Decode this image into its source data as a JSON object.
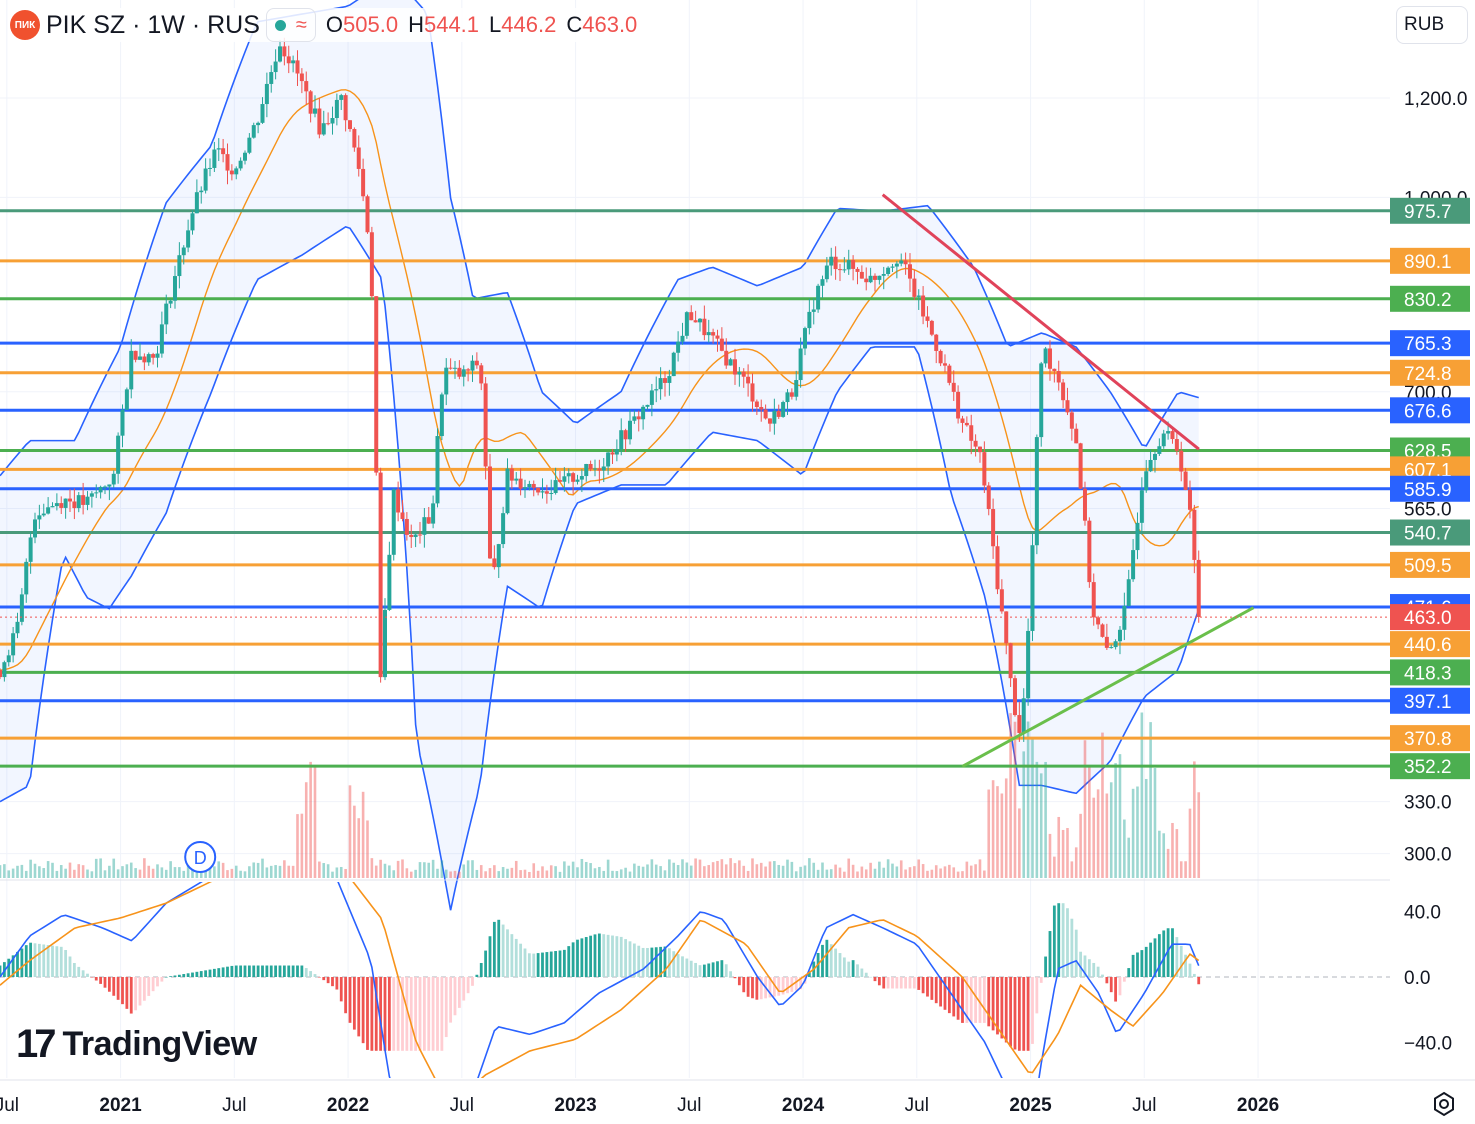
{
  "header": {
    "logo_text": "ПИК",
    "title": "PIK SZ · 1W · RUS",
    "indicator_icon": "wave-icon",
    "ohlc": [
      {
        "key": "O",
        "value": "505.0"
      },
      {
        "key": "H",
        "value": "544.1"
      },
      {
        "key": "L",
        "value": "446.2"
      },
      {
        "key": "C",
        "value": "463.0"
      }
    ]
  },
  "currency": "RUB",
  "branding": {
    "mark": "17",
    "word": "TradingView"
  },
  "colors": {
    "up": "#26a69a",
    "down": "#ef5350",
    "bollinger": "#2962ff",
    "ma": "#f7931a",
    "level_green": "#4caf50",
    "level_orange": "#f7a035",
    "level_blue": "#2962ff",
    "level_teal": "#4a9a7a",
    "trend_red": "#e0435a",
    "trend_green": "#6abf4b"
  },
  "chart_data": [
    {
      "type": "candlestick",
      "symbol": "PIK SZ",
      "interval": "1W",
      "ylog": true,
      "ylim": [
        280,
        1500
      ],
      "y_ticks": [
        "1,200.0",
        "1,000.0",
        "700.0",
        "565.0",
        "330.0",
        "300.0"
      ],
      "x_ticks": [
        "Jul",
        "2021",
        "Jul",
        "2022",
        "Jul",
        "2023",
        "Jul",
        "2024",
        "Jul",
        "2025",
        "Jul",
        "2026"
      ],
      "x_tick_times": [
        2020.5,
        2021.0,
        2021.5,
        2022.0,
        2022.5,
        2023.0,
        2023.5,
        2024.0,
        2024.5,
        2025.0,
        2025.5,
        2026.0
      ],
      "xlim": [
        2020.47,
        2026.58
      ],
      "last_price": {
        "value": 463.0,
        "label": "463.0"
      },
      "levels": [
        {
          "value": 975.7,
          "label": "975.7",
          "color": "teal"
        },
        {
          "value": 890.1,
          "label": "890.1",
          "color": "orange"
        },
        {
          "value": 830.2,
          "label": "830.2",
          "color": "green"
        },
        {
          "value": 765.3,
          "label": "765.3",
          "color": "blue"
        },
        {
          "value": 724.8,
          "label": "724.8",
          "color": "orange"
        },
        {
          "value": 676.6,
          "label": "676.6",
          "color": "blue"
        },
        {
          "value": 628.5,
          "label": "628.5",
          "color": "green"
        },
        {
          "value": 607.1,
          "label": "607.1",
          "color": "orange"
        },
        {
          "value": 585.9,
          "label": "585.9",
          "color": "blue"
        },
        {
          "value": 540.7,
          "label": "540.7",
          "color": "teal"
        },
        {
          "value": 509.5,
          "label": "509.5",
          "color": "orange"
        },
        {
          "value": 471.6,
          "label": "471.6",
          "color": "blue"
        },
        {
          "value": 440.6,
          "label": "440.6",
          "color": "orange"
        },
        {
          "value": 418.3,
          "label": "418.3",
          "color": "green"
        },
        {
          "value": 397.1,
          "label": "397.1",
          "color": "blue"
        },
        {
          "value": 370.8,
          "label": "370.8",
          "color": "orange"
        },
        {
          "value": 352.2,
          "label": "352.2",
          "color": "green"
        }
      ],
      "trendlines": [
        {
          "color": "red",
          "points": [
            [
              2024.35,
              1005
            ],
            [
              2025.74,
              630
            ]
          ]
        },
        {
          "color": "green",
          "points": [
            [
              2024.7,
              352
            ],
            [
              2025.98,
              471
            ]
          ]
        }
      ],
      "dividend_marker": {
        "time": 2021.35,
        "label": "D"
      },
      "price_keypoints": [
        [
          2020.47,
          420
        ],
        [
          2020.55,
          455
        ],
        [
          2020.62,
          560
        ],
        [
          2020.75,
          575
        ],
        [
          2020.85,
          570
        ],
        [
          2020.97,
          600
        ],
        [
          2021.05,
          755
        ],
        [
          2021.15,
          745
        ],
        [
          2021.25,
          880
        ],
        [
          2021.32,
          980
        ],
        [
          2021.42,
          1090
        ],
        [
          2021.5,
          1050
        ],
        [
          2021.6,
          1150
        ],
        [
          2021.7,
          1330
        ],
        [
          2021.78,
          1250
        ],
        [
          2021.88,
          1130
        ],
        [
          2021.97,
          1200
        ],
        [
          2022.05,
          1050
        ],
        [
          2022.1,
          900
        ],
        [
          2022.14,
          400
        ],
        [
          2022.2,
          580
        ],
        [
          2022.28,
          530
        ],
        [
          2022.37,
          560
        ],
        [
          2022.42,
          730
        ],
        [
          2022.5,
          720
        ],
        [
          2022.58,
          740
        ],
        [
          2022.63,
          480
        ],
        [
          2022.7,
          600
        ],
        [
          2022.8,
          590
        ],
        [
          2022.9,
          585
        ],
        [
          2023.0,
          600
        ],
        [
          2023.1,
          610
        ],
        [
          2023.25,
          660
        ],
        [
          2023.4,
          720
        ],
        [
          2023.5,
          810
        ],
        [
          2023.6,
          770
        ],
        [
          2023.75,
          710
        ],
        [
          2023.85,
          660
        ],
        [
          2023.95,
          700
        ],
        [
          2024.05,
          830
        ],
        [
          2024.12,
          890
        ],
        [
          2024.2,
          880
        ],
        [
          2024.3,
          860
        ],
        [
          2024.42,
          900
        ],
        [
          2024.5,
          830
        ],
        [
          2024.6,
          750
        ],
        [
          2024.7,
          660
        ],
        [
          2024.78,
          620
        ],
        [
          2024.85,
          500
        ],
        [
          2024.92,
          400
        ],
        [
          2024.96,
          370
        ],
        [
          2025.0,
          480
        ],
        [
          2025.05,
          760
        ],
        [
          2025.12,
          720
        ],
        [
          2025.2,
          640
        ],
        [
          2025.27,
          470
        ],
        [
          2025.34,
          430
        ],
        [
          2025.42,
          470
        ],
        [
          2025.5,
          610
        ],
        [
          2025.58,
          650
        ],
        [
          2025.65,
          630
        ],
        [
          2025.7,
          560
        ],
        [
          2025.74,
          463
        ]
      ],
      "bollinger_upper_keypoints": [
        [
          2020.47,
          600
        ],
        [
          2020.6,
          640
        ],
        [
          2020.8,
          640
        ],
        [
          2021.0,
          760
        ],
        [
          2021.2,
          990
        ],
        [
          2021.4,
          1100
        ],
        [
          2021.6,
          1380
        ],
        [
          2021.8,
          1400
        ],
        [
          2022.0,
          1420
        ],
        [
          2022.2,
          1500
        ],
        [
          2022.35,
          1400
        ],
        [
          2022.45,
          1000
        ],
        [
          2022.55,
          830
        ],
        [
          2022.7,
          840
        ],
        [
          2022.85,
          700
        ],
        [
          2023.0,
          660
        ],
        [
          2023.2,
          700
        ],
        [
          2023.45,
          860
        ],
        [
          2023.6,
          880
        ],
        [
          2023.8,
          850
        ],
        [
          2024.0,
          880
        ],
        [
          2024.15,
          980
        ],
        [
          2024.35,
          975
        ],
        [
          2024.55,
          985
        ],
        [
          2024.75,
          880
        ],
        [
          2024.9,
          760
        ],
        [
          2025.05,
          780
        ],
        [
          2025.2,
          760
        ],
        [
          2025.35,
          700
        ],
        [
          2025.5,
          630
        ],
        [
          2025.65,
          700
        ],
        [
          2025.77,
          690
        ]
      ],
      "bollinger_lower_keypoints": [
        [
          2020.47,
          330
        ],
        [
          2020.6,
          340
        ],
        [
          2020.75,
          520
        ],
        [
          2020.85,
          480
        ],
        [
          2020.95,
          470
        ],
        [
          2021.05,
          500
        ],
        [
          2021.2,
          560
        ],
        [
          2021.4,
          700
        ],
        [
          2021.6,
          860
        ],
        [
          2021.8,
          900
        ],
        [
          2022.0,
          950
        ],
        [
          2022.15,
          860
        ],
        [
          2022.3,
          370
        ],
        [
          2022.45,
          270
        ],
        [
          2022.58,
          340
        ],
        [
          2022.7,
          490
        ],
        [
          2022.85,
          470
        ],
        [
          2023.0,
          570
        ],
        [
          2023.2,
          590
        ],
        [
          2023.4,
          590
        ],
        [
          2023.6,
          650
        ],
        [
          2023.8,
          640
        ],
        [
          2024.0,
          600
        ],
        [
          2024.15,
          700
        ],
        [
          2024.3,
          760
        ],
        [
          2024.5,
          760
        ],
        [
          2024.65,
          580
        ],
        [
          2024.8,
          480
        ],
        [
          2024.95,
          340
        ],
        [
          2025.05,
          340
        ],
        [
          2025.2,
          335
        ],
        [
          2025.35,
          355
        ],
        [
          2025.5,
          400
        ],
        [
          2025.65,
          420
        ],
        [
          2025.74,
          470
        ]
      ],
      "volume_spike_times": [
        2021.82,
        2022.05,
        2024.85,
        2024.95,
        2025.02,
        2025.28,
        2025.38,
        2025.5,
        2025.74
      ]
    },
    {
      "type": "macd",
      "ylim": [
        -48,
        48
      ],
      "y_ticks": [
        "40.0",
        "0.0",
        "−40.0"
      ],
      "y_tick_values": [
        40,
        0,
        -40
      ],
      "macd_keypoints": [
        [
          2020.47,
          0
        ],
        [
          2020.6,
          25
        ],
        [
          2020.75,
          38
        ],
        [
          2020.92,
          30
        ],
        [
          2021.05,
          22
        ],
        [
          2021.2,
          45
        ],
        [
          2021.5,
          70
        ],
        [
          2021.8,
          80
        ],
        [
          2021.95,
          60
        ],
        [
          2022.1,
          10
        ],
        [
          2022.18,
          -60
        ],
        [
          2022.3,
          -110
        ],
        [
          2022.45,
          -100
        ],
        [
          2022.55,
          -70
        ],
        [
          2022.65,
          -30
        ],
        [
          2022.8,
          -35
        ],
        [
          2022.95,
          -28
        ],
        [
          2023.1,
          -10
        ],
        [
          2023.3,
          5
        ],
        [
          2023.45,
          25
        ],
        [
          2023.55,
          40
        ],
        [
          2023.65,
          35
        ],
        [
          2023.8,
          0
        ],
        [
          2023.9,
          -18
        ],
        [
          2024.0,
          -5
        ],
        [
          2024.1,
          30
        ],
        [
          2024.22,
          38
        ],
        [
          2024.35,
          30
        ],
        [
          2024.5,
          20
        ],
        [
          2024.65,
          -10
        ],
        [
          2024.8,
          -40
        ],
        [
          2024.92,
          -75
        ],
        [
          2025.0,
          -95
        ],
        [
          2025.05,
          -50
        ],
        [
          2025.12,
          5
        ],
        [
          2025.2,
          10
        ],
        [
          2025.3,
          -10
        ],
        [
          2025.38,
          -35
        ],
        [
          2025.5,
          -10
        ],
        [
          2025.62,
          20
        ],
        [
          2025.7,
          20
        ],
        [
          2025.76,
          0
        ]
      ],
      "signal_keypoints": [
        [
          2020.47,
          -5
        ],
        [
          2020.6,
          10
        ],
        [
          2020.8,
          30
        ],
        [
          2021.0,
          36
        ],
        [
          2021.2,
          45
        ],
        [
          2021.5,
          65
        ],
        [
          2021.8,
          75
        ],
        [
          2022.0,
          62
        ],
        [
          2022.15,
          35
        ],
        [
          2022.3,
          -40
        ],
        [
          2022.45,
          -80
        ],
        [
          2022.6,
          -60
        ],
        [
          2022.8,
          -45
        ],
        [
          2023.0,
          -38
        ],
        [
          2023.2,
          -20
        ],
        [
          2023.4,
          5
        ],
        [
          2023.55,
          35
        ],
        [
          2023.75,
          20
        ],
        [
          2023.9,
          -10
        ],
        [
          2024.05,
          5
        ],
        [
          2024.2,
          30
        ],
        [
          2024.35,
          35
        ],
        [
          2024.5,
          25
        ],
        [
          2024.7,
          0
        ],
        [
          2024.85,
          -30
        ],
        [
          2025.0,
          -60
        ],
        [
          2025.12,
          -35
        ],
        [
          2025.22,
          -5
        ],
        [
          2025.35,
          -20
        ],
        [
          2025.45,
          -30
        ],
        [
          2025.58,
          -10
        ],
        [
          2025.7,
          14
        ],
        [
          2025.76,
          8
        ]
      ]
    }
  ]
}
